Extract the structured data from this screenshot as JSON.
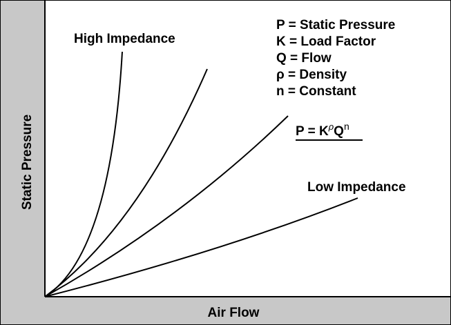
{
  "axes": {
    "y_label": "Static Pressure",
    "x_label": "Air Flow"
  },
  "labels": {
    "high": "High Impedance",
    "low": "Low Impedance"
  },
  "legend": [
    "P = Static Pressure",
    "K = Load Factor",
    "Q = Flow",
    "ρ = Density",
    "n = Constant"
  ],
  "formula": {
    "parts": [
      "P = K",
      "ρ",
      "Q",
      "n"
    ]
  }
}
